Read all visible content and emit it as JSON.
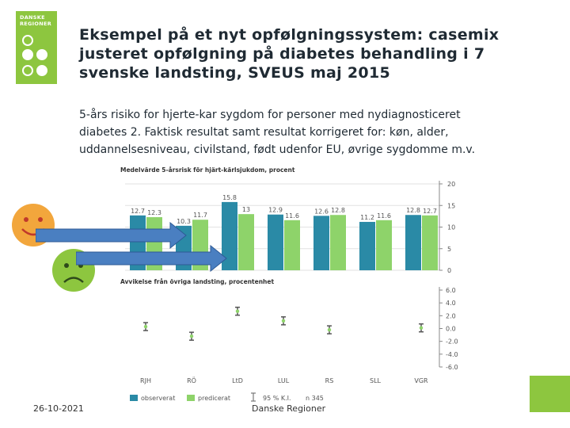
{
  "logo": {
    "line1": "DANSKE",
    "line2": "REGIONER"
  },
  "slide": {
    "title_line1": "Eksempel på et nyt opfølgningssystem: casemix",
    "title_line2": "justeret opfølgning på diabetes behandling i 7",
    "title_line3": "svenske landsting, SVEUS maj 2015",
    "subtitle_line1": "5-års risiko for hjerte-kar sygdom for personer med nydiagnosticeret",
    "subtitle_line2": "diabetes 2. Faktisk resultat samt resultat korrigeret for: køn, alder,",
    "subtitle_line3": "uddannelsesniveau, civilstand, født udenfor EU, øvrige sygdomme m.v."
  },
  "footer": {
    "date": "26-10-2021",
    "org": "Danske Regioner"
  },
  "chart_data": [
    {
      "type": "bar",
      "title": "Medelvärde 5-årsrisk för hjärt-kärlsjukdom, procent",
      "categories": [
        "RJH",
        "RÖ",
        "LtD",
        "LUL",
        "RS",
        "SLL",
        "VGR"
      ],
      "series": [
        {
          "name": "observerat",
          "values": [
            12.7,
            10.3,
            15.8,
            12.9,
            12.6,
            11.2,
            12.8
          ]
        },
        {
          "name": "predicerat",
          "values": [
            12.3,
            11.7,
            13.0,
            11.6,
            12.8,
            11.6,
            12.7
          ]
        }
      ],
      "ylim": [
        0,
        20
      ],
      "yticks": [
        "0",
        "5",
        "10",
        "15",
        "20"
      ],
      "colors": {
        "observerat": "#2a8aa6",
        "predicerat": "#8ed36a"
      }
    },
    {
      "type": "scatter",
      "title": "Avvikelse från övriga landsting, procentenhet",
      "categories": [
        "RJH",
        "RÖ",
        "LtD",
        "LUL",
        "RS",
        "SLL",
        "VGR"
      ],
      "values": [
        0.3,
        -1.2,
        2.7,
        1.2,
        -0.2,
        null,
        0.1
      ],
      "ylim": [
        -6.0,
        6.0
      ],
      "yticks": [
        "6.0",
        "4.0",
        "2.0",
        "0.0",
        "-2.0",
        "-4.0",
        "-6.0"
      ],
      "legend": {
        "observed": "observerat",
        "predicted": "predicerat",
        "ci": "95 % K.I.",
        "n": "n 345"
      }
    }
  ],
  "faces": {
    "happy_color": "#f2a63c",
    "sad_color": "#8dc63f"
  },
  "arrows": {
    "color": "#4a7fc1"
  }
}
